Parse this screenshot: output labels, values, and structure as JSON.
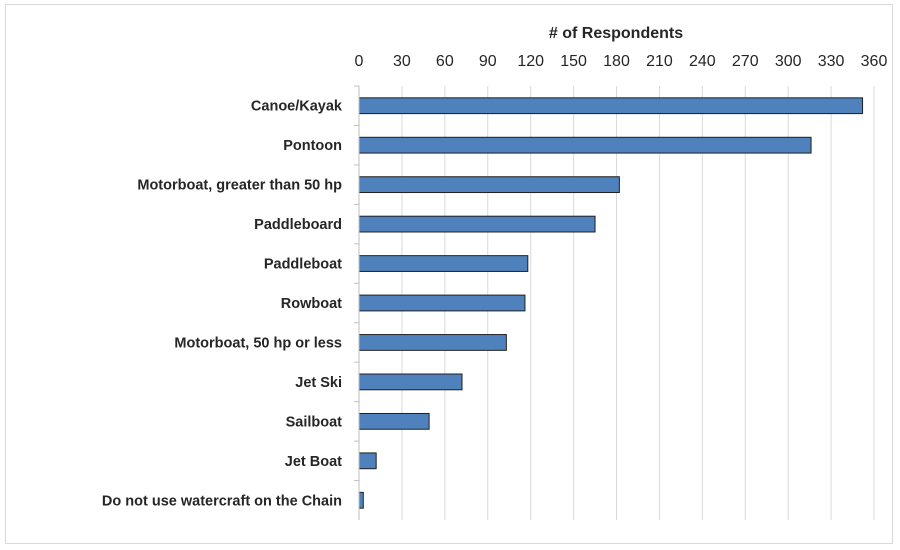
{
  "chart_data": {
    "type": "bar",
    "orientation": "horizontal",
    "title": "# of Respondents",
    "xlabel": "# of Respondents",
    "ylabel": "",
    "xlim": [
      0,
      360
    ],
    "xticks": [
      0,
      30,
      60,
      90,
      120,
      150,
      180,
      210,
      240,
      270,
      300,
      330,
      360
    ],
    "x_axis_position": "top",
    "grid": true,
    "legend": "none",
    "bar_color": "#4f81bd",
    "bar_edge_color": "#1f1f1f",
    "categories": [
      "Canoe/Kayak",
      "Pontoon",
      "Motorboat, greater than 50 hp",
      "Paddleboard",
      "Paddleboat",
      "Rowboat",
      "Motorboat, 50 hp or less",
      "Jet Ski",
      "Sailboat",
      "Jet Boat",
      "Do not use watercraft on the Chain"
    ],
    "values": [
      352,
      316,
      182,
      165,
      118,
      116,
      103,
      72,
      49,
      12,
      3
    ]
  }
}
